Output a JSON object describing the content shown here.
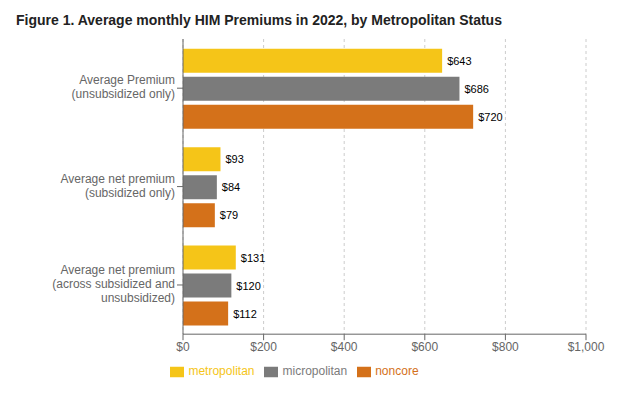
{
  "chart_data": {
    "type": "bar",
    "orientation": "horizontal",
    "title": "Figure 1. Average monthly HIM Premiums in 2022, by Metropolitan Status",
    "categories": [
      "Average Premium\n(unsubsidized only)",
      "Average net premium\n(subsidized only)",
      "Average net premium\n(across subsidized and\nunsubsidized)"
    ],
    "series": [
      {
        "name": "metropolitan",
        "color": "#F5C518",
        "values": [
          643,
          93,
          131
        ],
        "value_labels": [
          "$643",
          "$93",
          "$131"
        ]
      },
      {
        "name": "micropolitan",
        "color": "#7B7B7B",
        "values": [
          686,
          84,
          120
        ],
        "value_labels": [
          "$686",
          "$84",
          "$120"
        ]
      },
      {
        "name": "noncore",
        "color": "#D4711A",
        "values": [
          720,
          79,
          112
        ],
        "value_labels": [
          "$720",
          "$79",
          "$112"
        ]
      }
    ],
    "xlim": [
      0,
      1000
    ],
    "xticks": [
      {
        "value": 0,
        "label": "$0"
      },
      {
        "value": 200,
        "label": "$200"
      },
      {
        "value": 400,
        "label": "$400"
      },
      {
        "value": 600,
        "label": "$600"
      },
      {
        "value": 800,
        "label": "$800"
      },
      {
        "value": 1000,
        "label": "$1,000"
      }
    ],
    "grid": true,
    "data_labels": true,
    "legend": "bottom"
  }
}
